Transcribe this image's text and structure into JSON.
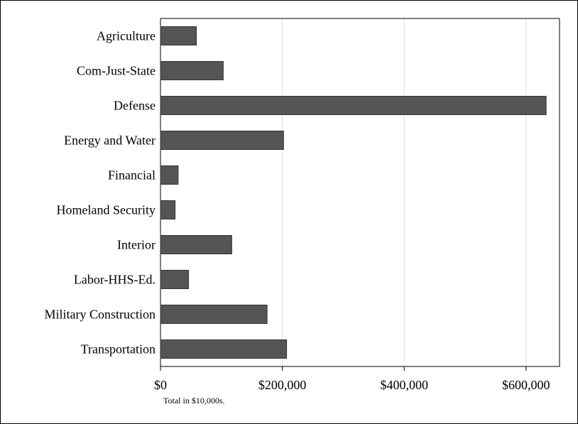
{
  "chart_data": {
    "type": "bar",
    "orientation": "horizontal",
    "categories": [
      "Agriculture",
      "Com-Just-State",
      "Defense",
      "Energy and Water",
      "Financial",
      "Homeland Security",
      "Interior",
      "Labor-HHS-Ed.",
      "Military Construction",
      "Transportation"
    ],
    "values": [
      59000,
      103000,
      633000,
      202000,
      29000,
      24000,
      117000,
      46000,
      175000,
      207000
    ],
    "xlim": [
      0,
      655000
    ],
    "xticks": [
      0,
      200000,
      400000,
      600000
    ],
    "xtick_labels": [
      "$0",
      "$200,000",
      "$400,000",
      "$600,000"
    ],
    "note": "Total in $10,000s.",
    "grid": "vertical",
    "colors": {
      "bar": "#555555",
      "bar_edge": "#333333",
      "grid": "#e0e0e0",
      "axis": "#000000"
    }
  }
}
